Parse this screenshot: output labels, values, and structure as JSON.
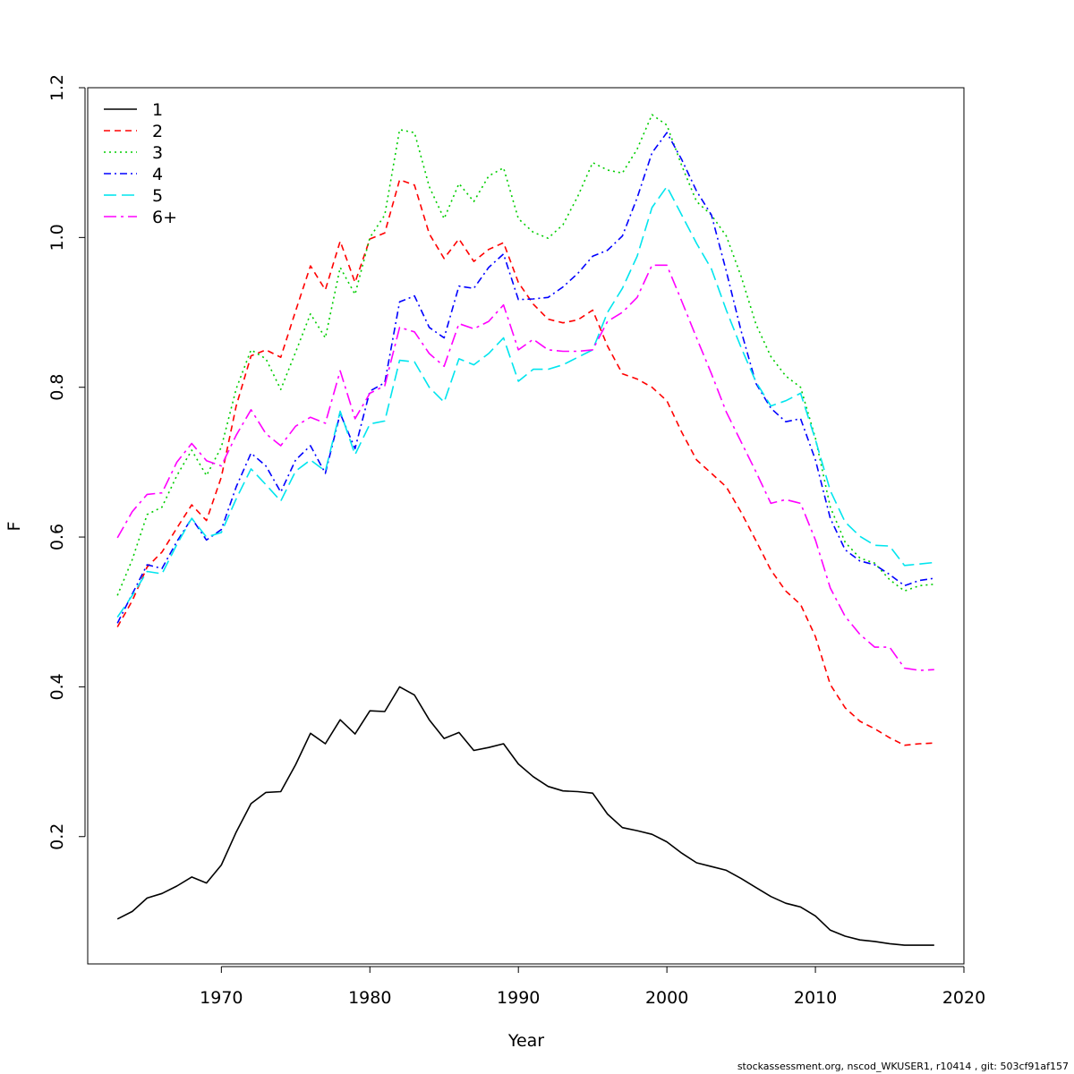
{
  "chart_data": {
    "type": "line",
    "title": "",
    "xlabel": "Year",
    "ylabel": "F",
    "xlim": [
      1961,
      2020
    ],
    "ylim": [
      0.03,
      1.2
    ],
    "xticks": [
      1970,
      1980,
      1990,
      2000,
      2010,
      2020
    ],
    "yticks": [
      0.2,
      0.4,
      0.6,
      0.8,
      1.0,
      1.2
    ],
    "ytick_labels": [
      "0.2",
      "0.4",
      "0.6",
      "0.8",
      "1.0",
      "1.2"
    ],
    "grid": false,
    "legend_position": "top-left",
    "x": [
      1963,
      1964,
      1965,
      1966,
      1967,
      1968,
      1969,
      1970,
      1971,
      1972,
      1973,
      1974,
      1975,
      1976,
      1977,
      1978,
      1979,
      1980,
      1981,
      1982,
      1983,
      1984,
      1985,
      1986,
      1987,
      1988,
      1989,
      1990,
      1991,
      1992,
      1993,
      1994,
      1995,
      1996,
      1997,
      1998,
      1999,
      2000,
      2001,
      2002,
      2003,
      2004,
      2005,
      2006,
      2007,
      2008,
      2009,
      2010,
      2011,
      2012,
      2013,
      2014,
      2015,
      2016,
      2017,
      2018
    ],
    "series": [
      {
        "name": "1",
        "color": "#000000",
        "dash": "",
        "values": [
          0.09,
          0.1,
          0.118,
          0.124,
          0.134,
          0.146,
          0.138,
          0.162,
          0.206,
          0.244,
          0.259,
          0.26,
          0.296,
          0.338,
          0.324,
          0.356,
          0.337,
          0.368,
          0.367,
          0.4,
          0.389,
          0.356,
          0.331,
          0.339,
          0.315,
          0.319,
          0.324,
          0.297,
          0.28,
          0.267,
          0.261,
          0.26,
          0.258,
          0.23,
          0.212,
          0.208,
          0.203,
          0.193,
          0.178,
          0.165,
          0.16,
          0.155,
          0.144,
          0.132,
          0.12,
          0.111,
          0.106,
          0.094,
          0.075,
          0.067,
          0.062,
          0.06,
          0.057,
          0.055,
          0.055,
          0.055
        ]
      },
      {
        "name": "2",
        "color": "#ff0000",
        "dash": "7,5",
        "values": [
          0.48,
          0.515,
          0.56,
          0.58,
          0.612,
          0.643,
          0.622,
          0.68,
          0.775,
          0.842,
          0.85,
          0.84,
          0.902,
          0.962,
          0.93,
          0.995,
          0.94,
          0.998,
          1.006,
          1.077,
          1.07,
          1.005,
          0.972,
          0.998,
          0.968,
          0.984,
          0.993,
          0.94,
          0.911,
          0.891,
          0.886,
          0.89,
          0.903,
          0.855,
          0.818,
          0.811,
          0.8,
          0.782,
          0.74,
          0.703,
          0.685,
          0.667,
          0.633,
          0.595,
          0.556,
          0.528,
          0.51,
          0.467,
          0.403,
          0.372,
          0.354,
          0.344,
          0.332,
          0.322,
          0.324,
          0.325
        ]
      },
      {
        "name": "3",
        "color": "#00cd00",
        "dash": "2,4",
        "values": [
          0.522,
          0.57,
          0.63,
          0.64,
          0.682,
          0.716,
          0.682,
          0.72,
          0.798,
          0.85,
          0.838,
          0.797,
          0.847,
          0.898,
          0.866,
          0.96,
          0.924,
          1.0,
          1.03,
          1.144,
          1.14,
          1.068,
          1.025,
          1.072,
          1.048,
          1.082,
          1.093,
          1.025,
          1.007,
          0.999,
          1.017,
          1.055,
          1.1,
          1.09,
          1.086,
          1.118,
          1.164,
          1.15,
          1.096,
          1.048,
          1.03,
          1.002,
          0.948,
          0.884,
          0.841,
          0.815,
          0.8,
          0.732,
          0.64,
          0.593,
          0.572,
          0.565,
          0.543,
          0.528,
          0.535,
          0.537
        ]
      },
      {
        "name": "4",
        "color": "#0000ff",
        "dash": "8,4,2,4",
        "values": [
          0.485,
          0.524,
          0.563,
          0.558,
          0.594,
          0.625,
          0.596,
          0.61,
          0.667,
          0.712,
          0.695,
          0.66,
          0.703,
          0.722,
          0.685,
          0.765,
          0.718,
          0.795,
          0.806,
          0.914,
          0.922,
          0.88,
          0.866,
          0.935,
          0.932,
          0.96,
          0.978,
          0.917,
          0.918,
          0.92,
          0.934,
          0.952,
          0.975,
          0.983,
          1.002,
          1.053,
          1.113,
          1.14,
          1.104,
          1.062,
          1.03,
          0.955,
          0.875,
          0.805,
          0.772,
          0.754,
          0.758,
          0.703,
          0.625,
          0.583,
          0.568,
          0.563,
          0.55,
          0.535,
          0.542,
          0.545
        ]
      },
      {
        "name": "5",
        "color": "#00e5ee",
        "dash": "14,6",
        "values": [
          0.493,
          0.522,
          0.554,
          0.551,
          0.59,
          0.625,
          0.6,
          0.606,
          0.651,
          0.691,
          0.67,
          0.648,
          0.688,
          0.703,
          0.688,
          0.768,
          0.71,
          0.751,
          0.755,
          0.836,
          0.834,
          0.8,
          0.78,
          0.838,
          0.83,
          0.845,
          0.866,
          0.808,
          0.824,
          0.824,
          0.83,
          0.84,
          0.85,
          0.9,
          0.932,
          0.975,
          1.04,
          1.068,
          1.03,
          0.992,
          0.958,
          0.903,
          0.853,
          0.807,
          0.775,
          0.782,
          0.792,
          0.73,
          0.662,
          0.62,
          0.601,
          0.589,
          0.588,
          0.562,
          0.564,
          0.566
        ]
      },
      {
        "name": "6+",
        "color": "#ff00ff",
        "dash": "14,5,3,5",
        "values": [
          0.599,
          0.634,
          0.657,
          0.659,
          0.7,
          0.725,
          0.702,
          0.695,
          0.736,
          0.77,
          0.738,
          0.722,
          0.748,
          0.76,
          0.752,
          0.822,
          0.758,
          0.792,
          0.802,
          0.88,
          0.874,
          0.845,
          0.828,
          0.885,
          0.878,
          0.888,
          0.91,
          0.85,
          0.864,
          0.85,
          0.848,
          0.848,
          0.85,
          0.888,
          0.9,
          0.92,
          0.963,
          0.963,
          0.915,
          0.866,
          0.818,
          0.767,
          0.727,
          0.687,
          0.645,
          0.65,
          0.645,
          0.596,
          0.532,
          0.494,
          0.47,
          0.453,
          0.453,
          0.425,
          0.422,
          0.423
        ]
      }
    ]
  },
  "footer": "stockassessment.org, nscod_WKUSER1, r10414 , git: 503cf91af157"
}
